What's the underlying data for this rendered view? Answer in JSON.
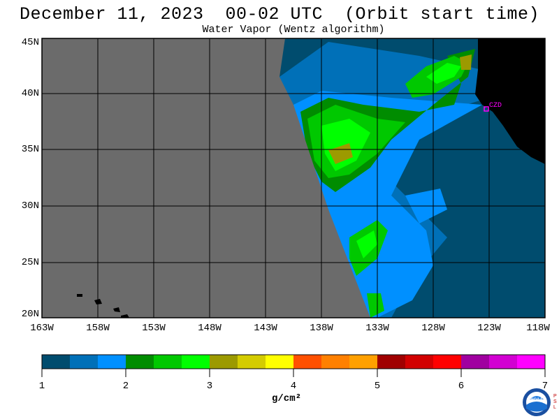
{
  "header": {
    "title": "December 11, 2023  00-02 UTC  (Orbit start time)",
    "subtitle": "Water Vapor (Wentz algorithm)"
  },
  "map": {
    "latitude_labels": [
      "45N",
      "40N",
      "35N",
      "30N",
      "25N",
      "20N"
    ],
    "longitude_labels": [
      "163W",
      "158W",
      "153W",
      "148W",
      "143W",
      "138W",
      "133W",
      "128W",
      "123W",
      "118W"
    ],
    "station_label": "CZD",
    "colors": {
      "no_data": "#6b6b6b",
      "land": "#000000",
      "station": "#ff00ff"
    }
  },
  "colorbar": {
    "ticks": [
      "1",
      "2",
      "3",
      "4",
      "5",
      "6",
      "7"
    ],
    "unit": "g/cm²",
    "colors": [
      "#004c6e",
      "#0070b8",
      "#0090ff",
      "#008c00",
      "#00c800",
      "#00ff00",
      "#9c9a00",
      "#d4cc00",
      "#ffff00",
      "#ff5000",
      "#ff8000",
      "#ffa000",
      "#a00000",
      "#d20000",
      "#ff0000",
      "#a000a0",
      "#d200d2",
      "#ff00ff"
    ]
  },
  "logo": {
    "text": "NOAA",
    "side_text": "PSL"
  }
}
